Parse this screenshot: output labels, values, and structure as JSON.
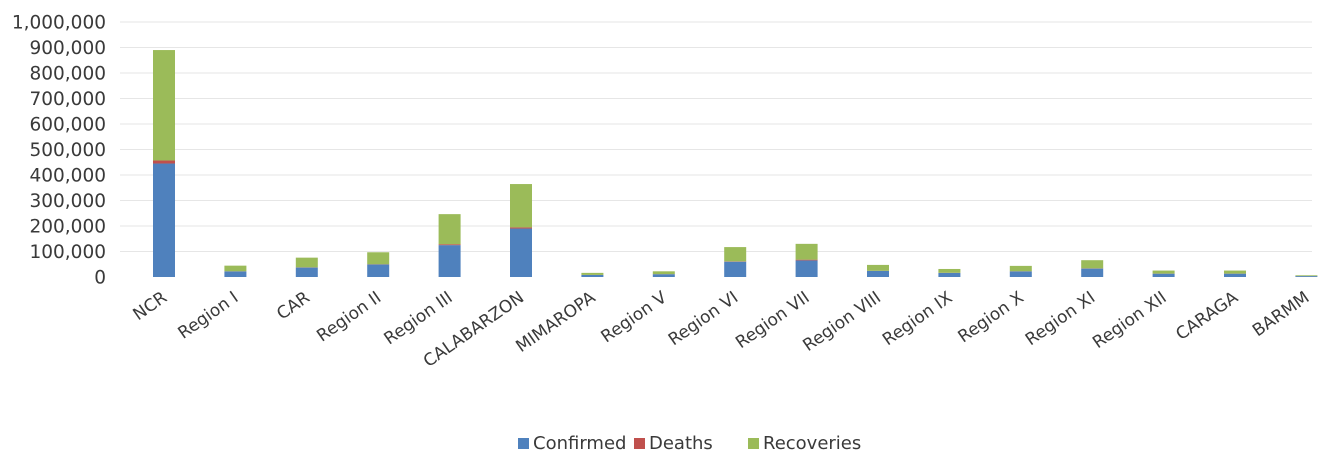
{
  "chart_data": {
    "type": "bar",
    "stacked": true,
    "categories": [
      "NCR",
      "Region I",
      "CAR",
      "Region II",
      "Region III",
      "CALABARZON",
      "MIMAROPA",
      "Region V",
      "Region VI",
      "Region VII",
      "Region VIII",
      "Region IX",
      "Region X",
      "Region XI",
      "Region XII",
      "CARAGA",
      "BARMM"
    ],
    "series": [
      {
        "name": "Confirmed",
        "color": "#4f81bd",
        "values": [
          445000,
          22000,
          37000,
          49000,
          125000,
          190000,
          8000,
          11000,
          60000,
          65000,
          24000,
          16000,
          22000,
          33000,
          13000,
          13000,
          3500
        ]
      },
      {
        "name": "Deaths",
        "color": "#c0504d",
        "values": [
          12000,
          500,
          900,
          1000,
          3500,
          4500,
          200,
          300,
          1300,
          3000,
          400,
          500,
          600,
          900,
          300,
          300,
          100
        ]
      },
      {
        "name": "Recoveries",
        "color": "#9bbb59",
        "values": [
          433000,
          22000,
          38000,
          47000,
          118000,
          170000,
          8000,
          11000,
          56000,
          62000,
          23000,
          15000,
          21000,
          32000,
          12000,
          12000,
          3000
        ]
      }
    ],
    "ylim": [
      0,
      1000000
    ],
    "yticks": [
      "0",
      "100,000",
      "200,000",
      "300,000",
      "400,000",
      "500,000",
      "600,000",
      "700,000",
      "800,000",
      "900,000",
      "1,000,000"
    ],
    "legend_position": "bottom",
    "grid": true
  }
}
